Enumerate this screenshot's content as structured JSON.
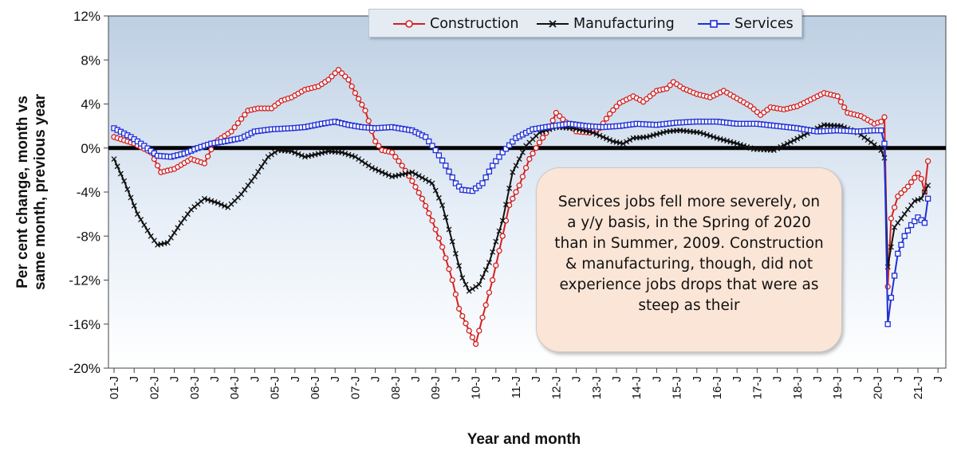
{
  "chart_data": {
    "type": "line",
    "title": "",
    "xlabel": "Year and month",
    "ylabel_line1": "Per cent change, month vs",
    "ylabel_line2": "same month, previous year",
    "ylim": [
      -20,
      12
    ],
    "y_ticks": [
      "12%",
      "8%",
      "4%",
      "0%",
      "-4%",
      "-8%",
      "-12%",
      "-16%",
      "-20%"
    ],
    "y_tick_values": [
      12,
      8,
      4,
      0,
      -4,
      -8,
      -12,
      -16,
      -20
    ],
    "x_range": [
      "2001-01",
      "2021-04"
    ],
    "x_tick_labels": [
      "01-J",
      "J",
      "02-J",
      "J",
      "03-J",
      "J",
      "04-J",
      "J",
      "05-J",
      "J",
      "06-J",
      "J",
      "07-J",
      "J",
      "08-J",
      "J",
      "09-J",
      "J",
      "10-J",
      "J",
      "11-J",
      "J",
      "12-J",
      "J",
      "13-J",
      "J",
      "14-J",
      "J",
      "15-J",
      "J",
      "16-J",
      "J",
      "17-J",
      "J",
      "18-J",
      "J",
      "19-J",
      "J",
      "20-J",
      "J",
      "21-J",
      "J"
    ],
    "grid": false,
    "legend_position": "top-center",
    "colors": {
      "Construction": "#d42020",
      "Manufacturing": "#111111",
      "Services": "#1f2fd6",
      "zero_line": "#000000"
    },
    "series": [
      {
        "name": "Construction",
        "marker": "circle",
        "points": [
          [
            "2001-01",
            1.0
          ],
          [
            "2001-07",
            0.4
          ],
          [
            "2001-12",
            -0.4
          ],
          [
            "2002-03",
            -2.2
          ],
          [
            "2002-07",
            -1.9
          ],
          [
            "2002-12",
            -1.0
          ],
          [
            "2003-04",
            -1.4
          ],
          [
            "2003-07",
            0.5
          ],
          [
            "2003-12",
            1.5
          ],
          [
            "2004-05",
            3.4
          ],
          [
            "2004-08",
            3.6
          ],
          [
            "2004-12",
            3.6
          ],
          [
            "2005-03",
            4.3
          ],
          [
            "2005-06",
            4.6
          ],
          [
            "2005-10",
            5.3
          ],
          [
            "2006-02",
            5.6
          ],
          [
            "2006-05",
            6.2
          ],
          [
            "2006-08",
            7.1
          ],
          [
            "2006-11",
            6.2
          ],
          [
            "2007-01",
            5.0
          ],
          [
            "2007-04",
            3.4
          ],
          [
            "2007-07",
            0.6
          ],
          [
            "2007-09",
            -0.2
          ],
          [
            "2007-12",
            -0.4
          ],
          [
            "2008-03",
            -1.6
          ],
          [
            "2008-06",
            -3.0
          ],
          [
            "2008-09",
            -4.6
          ],
          [
            "2008-12",
            -6.6
          ],
          [
            "2009-03",
            -9.0
          ],
          [
            "2009-06",
            -12.0
          ],
          [
            "2009-08",
            -14.6
          ],
          [
            "2009-11",
            -16.6
          ],
          [
            "2010-01",
            -17.8
          ],
          [
            "2010-03",
            -15.4
          ],
          [
            "2010-06",
            -12.0
          ],
          [
            "2010-09",
            -8.0
          ],
          [
            "2010-11",
            -5.2
          ],
          [
            "2011-02",
            -3.4
          ],
          [
            "2011-05",
            -1.0
          ],
          [
            "2011-08",
            0.5
          ],
          [
            "2011-11",
            1.8
          ],
          [
            "2012-01",
            3.2
          ],
          [
            "2012-03",
            2.6
          ],
          [
            "2012-07",
            1.5
          ],
          [
            "2012-11",
            1.4
          ],
          [
            "2013-02",
            1.8
          ],
          [
            "2013-05",
            3.1
          ],
          [
            "2013-08",
            4.1
          ],
          [
            "2013-12",
            4.7
          ],
          [
            "2014-03",
            4.2
          ],
          [
            "2014-07",
            5.2
          ],
          [
            "2014-10",
            5.4
          ],
          [
            "2014-12",
            6.0
          ],
          [
            "2015-03",
            5.4
          ],
          [
            "2015-07",
            4.9
          ],
          [
            "2015-11",
            4.6
          ],
          [
            "2016-03",
            5.2
          ],
          [
            "2016-07",
            4.5
          ],
          [
            "2016-11",
            3.8
          ],
          [
            "2017-02",
            3.0
          ],
          [
            "2017-05",
            3.7
          ],
          [
            "2017-09",
            3.5
          ],
          [
            "2018-01",
            3.8
          ],
          [
            "2018-05",
            4.4
          ],
          [
            "2018-09",
            5.0
          ],
          [
            "2019-01",
            4.7
          ],
          [
            "2019-04",
            3.2
          ],
          [
            "2019-08",
            2.9
          ],
          [
            "2019-12",
            2.2
          ],
          [
            "2020-02",
            2.4
          ],
          [
            "2020-03",
            2.8
          ],
          [
            "2020-04",
            -12.6
          ],
          [
            "2020-05",
            -6.4
          ],
          [
            "2020-07",
            -4.4
          ],
          [
            "2020-10",
            -3.5
          ],
          [
            "2021-01",
            -2.3
          ],
          [
            "2021-02",
            -2.8
          ],
          [
            "2021-03",
            -4.0
          ],
          [
            "2021-04",
            -1.2
          ]
        ]
      },
      {
        "name": "Manufacturing",
        "marker": "x",
        "points": [
          [
            "2001-01",
            -1.0
          ],
          [
            "2001-04",
            -3.0
          ],
          [
            "2001-08",
            -6.0
          ],
          [
            "2001-12",
            -8.0
          ],
          [
            "2002-02",
            -8.8
          ],
          [
            "2002-05",
            -8.6
          ],
          [
            "2002-09",
            -6.8
          ],
          [
            "2002-12",
            -5.6
          ],
          [
            "2003-04",
            -4.6
          ],
          [
            "2003-08",
            -5.0
          ],
          [
            "2003-11",
            -5.4
          ],
          [
            "2004-03",
            -4.2
          ],
          [
            "2004-07",
            -2.6
          ],
          [
            "2004-11",
            -0.8
          ],
          [
            "2005-02",
            -0.2
          ],
          [
            "2005-06",
            -0.3
          ],
          [
            "2005-10",
            -0.8
          ],
          [
            "2006-01",
            -0.6
          ],
          [
            "2006-05",
            -0.3
          ],
          [
            "2006-09",
            -0.4
          ],
          [
            "2007-01",
            -0.8
          ],
          [
            "2007-06",
            -1.8
          ],
          [
            "2007-12",
            -2.6
          ],
          [
            "2008-06",
            -2.2
          ],
          [
            "2008-12",
            -3.2
          ],
          [
            "2009-03",
            -5.2
          ],
          [
            "2009-06",
            -8.5
          ],
          [
            "2009-09",
            -11.8
          ],
          [
            "2009-11",
            -13.0
          ],
          [
            "2010-02",
            -12.4
          ],
          [
            "2010-05",
            -10.4
          ],
          [
            "2010-09",
            -6.6
          ],
          [
            "2010-12",
            -2.2
          ],
          [
            "2011-04",
            0.2
          ],
          [
            "2011-08",
            1.4
          ],
          [
            "2012-01",
            1.9
          ],
          [
            "2012-06",
            1.8
          ],
          [
            "2012-12",
            1.4
          ],
          [
            "2013-06",
            0.6
          ],
          [
            "2013-09",
            0.4
          ],
          [
            "2013-12",
            0.9
          ],
          [
            "2014-04",
            1.0
          ],
          [
            "2014-10",
            1.5
          ],
          [
            "2015-02",
            1.6
          ],
          [
            "2015-08",
            1.4
          ],
          [
            "2016-01",
            0.9
          ],
          [
            "2016-07",
            0.4
          ],
          [
            "2016-12",
            -0.1
          ],
          [
            "2017-06",
            -0.2
          ],
          [
            "2017-12",
            0.7
          ],
          [
            "2018-05",
            1.5
          ],
          [
            "2018-09",
            2.1
          ],
          [
            "2019-02",
            2.0
          ],
          [
            "2019-07",
            1.4
          ],
          [
            "2019-12",
            0.3
          ],
          [
            "2020-02",
            -0.2
          ],
          [
            "2020-03",
            -0.9
          ],
          [
            "2020-04",
            -10.8
          ],
          [
            "2020-06",
            -7.2
          ],
          [
            "2020-09",
            -6.0
          ],
          [
            "2020-12",
            -4.8
          ],
          [
            "2021-02",
            -4.6
          ],
          [
            "2021-04",
            -3.4
          ]
        ]
      },
      {
        "name": "Services",
        "marker": "square",
        "points": [
          [
            "2001-01",
            1.8
          ],
          [
            "2001-06",
            1.0
          ],
          [
            "2001-10",
            0.2
          ],
          [
            "2002-02",
            -0.7
          ],
          [
            "2002-06",
            -0.8
          ],
          [
            "2002-10",
            -0.5
          ],
          [
            "2003-02",
            0.0
          ],
          [
            "2003-06",
            0.4
          ],
          [
            "2003-10",
            0.6
          ],
          [
            "2004-03",
            0.9
          ],
          [
            "2004-07",
            1.5
          ],
          [
            "2004-12",
            1.7
          ],
          [
            "2005-06",
            1.8
          ],
          [
            "2005-10",
            1.9
          ],
          [
            "2006-03",
            2.2
          ],
          [
            "2006-07",
            2.4
          ],
          [
            "2006-11",
            2.1
          ],
          [
            "2007-03",
            1.9
          ],
          [
            "2007-07",
            1.8
          ],
          [
            "2007-12",
            1.9
          ],
          [
            "2008-06",
            1.6
          ],
          [
            "2008-10",
            1.0
          ],
          [
            "2009-01",
            -0.2
          ],
          [
            "2009-04",
            -1.6
          ],
          [
            "2009-07",
            -3.2
          ],
          [
            "2009-09",
            -3.8
          ],
          [
            "2009-12",
            -3.9
          ],
          [
            "2010-03",
            -3.2
          ],
          [
            "2010-06",
            -1.6
          ],
          [
            "2010-09",
            -0.4
          ],
          [
            "2011-01",
            0.9
          ],
          [
            "2011-06",
            1.7
          ],
          [
            "2011-12",
            2.0
          ],
          [
            "2012-05",
            2.2
          ],
          [
            "2012-10",
            2.0
          ],
          [
            "2013-03",
            1.9
          ],
          [
            "2013-08",
            2.0
          ],
          [
            "2014-01",
            2.2
          ],
          [
            "2014-07",
            2.1
          ],
          [
            "2015-01",
            2.3
          ],
          [
            "2015-07",
            2.4
          ],
          [
            "2016-01",
            2.4
          ],
          [
            "2016-07",
            2.2
          ],
          [
            "2017-01",
            2.2
          ],
          [
            "2017-07",
            2.0
          ],
          [
            "2018-01",
            1.8
          ],
          [
            "2018-07",
            1.5
          ],
          [
            "2019-01",
            1.6
          ],
          [
            "2019-07",
            1.5
          ],
          [
            "2019-12",
            1.6
          ],
          [
            "2020-02",
            1.6
          ],
          [
            "2020-03",
            0.4
          ],
          [
            "2020-04",
            -16.0
          ],
          [
            "2020-05",
            -13.6
          ],
          [
            "2020-07",
            -9.6
          ],
          [
            "2020-09",
            -8.0
          ],
          [
            "2020-11",
            -7.0
          ],
          [
            "2021-01",
            -6.3
          ],
          [
            "2021-03",
            -6.8
          ],
          [
            "2021-04",
            -4.6
          ]
        ]
      }
    ]
  },
  "annotation": {
    "text": "Services jobs fell more severely, on a y/y basis, in the Spring of 2020 than in Summer, 2009. Construction &  manufacturing, though, did not experience jobs drops that were as steep as their"
  }
}
